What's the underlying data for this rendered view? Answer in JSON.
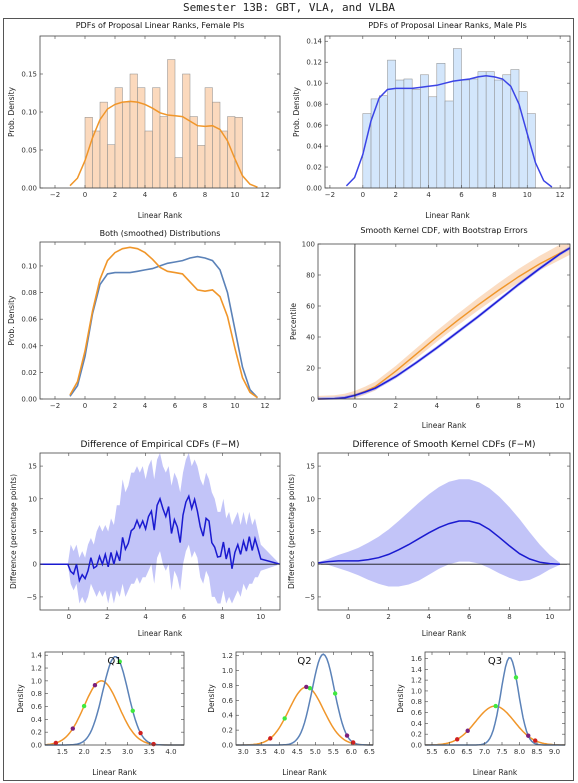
{
  "page_title": "Semester 13B: GBT, VLA, and VLBA",
  "colors": {
    "female": "#f0962a",
    "female_fill": "#fbd9bd",
    "male": "#3b44e6",
    "male_fill": "#d3e6fb",
    "kernel_m": "#5b82b8",
    "band": "#aeb0f5",
    "diff_line": "#1a1ad0",
    "point_green": "#3fe93f",
    "point_purple": "#7b1f7b",
    "point_red": "#d02020"
  },
  "chart_data": [
    {
      "id": "female_pdf",
      "type": "bar",
      "title": "PDFs of Proposal Linear Ranks, Female PIs",
      "xlabel": "Linear Rank",
      "ylabel": "Prob. Density",
      "xlim": [
        -3,
        13
      ],
      "ylim": [
        0,
        0.2
      ],
      "xticks": [
        -2,
        0,
        2,
        4,
        6,
        8,
        10,
        12
      ],
      "yticks": [
        0,
        0.05,
        0.1,
        0.15
      ],
      "ytick_labels": [
        "0.00",
        "0.05",
        "0.10",
        "0.15"
      ],
      "bin_edges": [
        0,
        0.5,
        1,
        1.5,
        2,
        2.5,
        3,
        3.5,
        4,
        4.5,
        5,
        5.5,
        6,
        6.5,
        7,
        7.5,
        8,
        8.5,
        9,
        9.5,
        10,
        10.5
      ],
      "values": [
        0.093,
        0.075,
        0.113,
        0.057,
        0.132,
        0.113,
        0.15,
        0.132,
        0.075,
        0.132,
        0.094,
        0.169,
        0.04,
        0.15,
        0.094,
        0.056,
        0.132,
        0.113,
        0.075,
        0.094,
        0.093
      ],
      "curve": {
        "x": [
          -1,
          -0.5,
          0,
          0.5,
          1,
          1.5,
          2,
          2.5,
          3,
          3.5,
          4,
          4.5,
          5,
          5.5,
          6,
          6.5,
          7,
          7.5,
          8,
          8.5,
          9,
          9.5,
          10,
          10.5,
          11,
          11.5
        ],
        "y": [
          0.003,
          0.013,
          0.036,
          0.066,
          0.09,
          0.104,
          0.11,
          0.113,
          0.114,
          0.113,
          0.11,
          0.105,
          0.099,
          0.096,
          0.095,
          0.094,
          0.088,
          0.082,
          0.081,
          0.082,
          0.077,
          0.062,
          0.038,
          0.016,
          0.005,
          0.001
        ]
      }
    },
    {
      "id": "male_pdf",
      "type": "bar",
      "title": "PDFs of Proposal Linear Ranks, Male PIs",
      "xlabel": "Linear Rank",
      "ylabel": "Prob. Density",
      "xlim": [
        -2.3,
        12.6
      ],
      "ylim": [
        0,
        0.145
      ],
      "xticks": [
        -2,
        0,
        2,
        4,
        6,
        8,
        10,
        12
      ],
      "yticks": [
        0,
        0.02,
        0.04,
        0.06,
        0.08,
        0.1,
        0.12,
        0.14
      ],
      "ytick_labels": [
        "0.00",
        "0.02",
        "0.04",
        "0.06",
        "0.08",
        "0.10",
        "0.12",
        "0.14"
      ],
      "bin_edges": [
        0,
        0.5,
        1,
        1.5,
        2,
        2.5,
        3,
        3.5,
        4,
        4.5,
        5,
        5.5,
        6,
        6.5,
        7,
        7.5,
        8,
        8.5,
        9,
        9.5,
        10,
        10.5
      ],
      "values": [
        0.071,
        0.085,
        0.088,
        0.122,
        0.103,
        0.104,
        0.094,
        0.108,
        0.087,
        0.119,
        0.083,
        0.133,
        0.103,
        0.104,
        0.111,
        0.111,
        0.103,
        0.108,
        0.113,
        0.092,
        0.071
      ],
      "curve": {
        "x": [
          -1,
          -0.5,
          0,
          0.5,
          1,
          1.5,
          2,
          2.5,
          3,
          3.5,
          4,
          4.5,
          5,
          5.5,
          6,
          6.5,
          7,
          7.5,
          8,
          8.5,
          9,
          9.5,
          10,
          10.5,
          11,
          11.5
        ],
        "y": [
          0.002,
          0.01,
          0.032,
          0.064,
          0.086,
          0.094,
          0.095,
          0.095,
          0.095,
          0.096,
          0.097,
          0.098,
          0.1,
          0.102,
          0.103,
          0.104,
          0.106,
          0.107,
          0.106,
          0.104,
          0.097,
          0.08,
          0.052,
          0.024,
          0.007,
          0.001
        ]
      }
    },
    {
      "id": "both",
      "type": "line",
      "title": "Both (smoothed) Distributions",
      "xlabel": "",
      "ylabel": "Prob. Density",
      "xlim": [
        -3,
        13
      ],
      "ylim": [
        0,
        0.118
      ],
      "xticks": [
        -2,
        0,
        2,
        4,
        6,
        8,
        10,
        12
      ],
      "yticks": [
        0,
        0.02,
        0.04,
        0.06,
        0.08,
        0.1
      ],
      "ytick_labels": [
        "0.00",
        "0.02",
        "0.04",
        "0.06",
        "0.08",
        "0.10"
      ],
      "series": [
        {
          "x": [
            -1,
            -0.5,
            0,
            0.5,
            1,
            1.5,
            2,
            2.5,
            3,
            3.5,
            4,
            4.5,
            5,
            5.5,
            6,
            6.5,
            7,
            7.5,
            8,
            8.5,
            9,
            9.5,
            10,
            10.5,
            11,
            11.5
          ],
          "y": [
            0.003,
            0.013,
            0.036,
            0.066,
            0.09,
            0.104,
            0.11,
            0.113,
            0.114,
            0.113,
            0.11,
            0.105,
            0.099,
            0.096,
            0.095,
            0.094,
            0.088,
            0.082,
            0.081,
            0.082,
            0.077,
            0.062,
            0.038,
            0.016,
            0.005,
            0.001
          ]
        },
        {
          "x": [
            -1,
            -0.5,
            0,
            0.5,
            1,
            1.5,
            2,
            2.5,
            3,
            3.5,
            4,
            4.5,
            5,
            5.5,
            6,
            6.5,
            7,
            7.5,
            8,
            8.5,
            9,
            9.5,
            10,
            10.5,
            11,
            11.5
          ],
          "y": [
            0.002,
            0.01,
            0.032,
            0.064,
            0.086,
            0.094,
            0.095,
            0.095,
            0.095,
            0.096,
            0.097,
            0.098,
            0.1,
            0.102,
            0.103,
            0.104,
            0.106,
            0.107,
            0.106,
            0.104,
            0.097,
            0.08,
            0.052,
            0.024,
            0.007,
            0.001
          ]
        }
      ]
    },
    {
      "id": "cdf",
      "type": "line",
      "title": "Smooth Kernel CDF, with Bootstrap Errors",
      "xlabel": "Linear Rank",
      "ylabel": "Percentile",
      "xlim": [
        -1.8,
        10.5
      ],
      "ylim": [
        0,
        100
      ],
      "xticks": [
        0,
        2,
        4,
        6,
        8,
        10
      ],
      "yticks": [
        0,
        20,
        40,
        60,
        80,
        100
      ],
      "series": [
        {
          "x": [
            -1.8,
            -1,
            -0.5,
            0,
            0.5,
            1,
            2,
            3,
            4,
            5,
            6,
            7,
            8,
            9,
            10,
            10.5
          ],
          "y": [
            0,
            0.2,
            0.9,
            2.5,
            5,
            8,
            18,
            29,
            40,
            50.5,
            60.5,
            70,
            79,
            87,
            94,
            97.5
          ]
        },
        {
          "x": [
            -1.8,
            -1,
            -0.5,
            0,
            0.5,
            1,
            2,
            3,
            4,
            5,
            6,
            7,
            8,
            9,
            10,
            10.5
          ],
          "y": [
            0,
            0.2,
            0.8,
            2.3,
            4.5,
            7,
            14.5,
            23.5,
            33,
            43,
            53,
            63.5,
            74,
            84,
            93.5,
            97.5
          ]
        }
      ]
    },
    {
      "id": "diff_emp",
      "type": "line",
      "title": "Difference of Empirical CDFs (F−M)",
      "xlabel": "Linear Rank",
      "ylabel": "Difference (percentage points)",
      "xlim": [
        -1.5,
        11
      ],
      "ylim": [
        -7,
        17
      ],
      "xticks": [
        0,
        2,
        4,
        6,
        8,
        10
      ],
      "yticks": [
        -5,
        0,
        5,
        10,
        15
      ],
      "series": [
        {
          "x": [
            -1.5,
            -0.05,
            0.1,
            0.25,
            0.4,
            0.55,
            0.7,
            0.85,
            1.0,
            1.15,
            1.3,
            1.45,
            1.6,
            1.75,
            1.9,
            2.05,
            2.2,
            2.35,
            2.5,
            2.65,
            2.8,
            2.95,
            3.1,
            3.25,
            3.4,
            3.55,
            3.7,
            3.85,
            4.0,
            4.15,
            4.3,
            4.45,
            4.6,
            4.75,
            4.9,
            5.05,
            5.2,
            5.35,
            5.5,
            5.65,
            5.8,
            5.95,
            6.1,
            6.25,
            6.4,
            6.55,
            6.7,
            6.85,
            7.0,
            7.15,
            7.3,
            7.45,
            7.6,
            7.75,
            7.9,
            8.05,
            8.2,
            8.35,
            8.5,
            8.65,
            8.8,
            8.95,
            9.1,
            9.25,
            9.4,
            9.55,
            9.7,
            9.85,
            10.0,
            11
          ],
          "y": [
            0,
            0,
            -1.1,
            -1.5,
            0,
            -2.5,
            -1.6,
            -2.2,
            -1,
            1,
            -0.6,
            -0.3,
            1.2,
            0,
            1.5,
            -0.4,
            1.8,
            0,
            1.8,
            0.5,
            4.1,
            2.3,
            3.2,
            5.1,
            5.5,
            6.7,
            5.6,
            6.6,
            5.4,
            7.3,
            8.1,
            5.2,
            9,
            10,
            8.5,
            7.3,
            8.8,
            4.7,
            6.8,
            5.7,
            3.3,
            7.5,
            9.5,
            10.4,
            8.5,
            9.9,
            8.1,
            5.7,
            4.3,
            7,
            6.6,
            3.3,
            2.6,
            1.1,
            1.2,
            3.4,
            0.8,
            2.5,
            -0.7,
            1.8,
            3,
            1.5,
            3.5,
            2,
            4.2,
            2.1,
            3.9,
            2.4,
            0.8,
            0
          ]
        }
      ],
      "band": {
        "upper": [
          0,
          0,
          3,
          2,
          3,
          1,
          2,
          1,
          3,
          4,
          3,
          5,
          6,
          5,
          6,
          5,
          7,
          6,
          9,
          9,
          13,
          11,
          12,
          14,
          14,
          15,
          14,
          15,
          13,
          15,
          16,
          13,
          16,
          17,
          15,
          14,
          15,
          12,
          14,
          13,
          11,
          14,
          16,
          17,
          15,
          16,
          15,
          13,
          12,
          14,
          13,
          11,
          10,
          8,
          8,
          10,
          7,
          8,
          6,
          7,
          8,
          6,
          8,
          6,
          8,
          6,
          7,
          5,
          3,
          0
        ],
        "lower": [
          0,
          0,
          -3,
          -4,
          -3,
          -6,
          -5,
          -6,
          -5,
          -3,
          -4,
          -5,
          -4,
          -5,
          -4,
          -6,
          -4,
          -6,
          -4,
          -5,
          -3,
          -5,
          -4,
          -3,
          -3,
          -2,
          -3,
          -2,
          -2,
          -1,
          0,
          -3,
          1,
          2,
          0,
          -1,
          0,
          -4,
          -1,
          -2,
          -4,
          0,
          2,
          3,
          1,
          2,
          1,
          -2,
          -3,
          -1,
          -2,
          -5,
          -5,
          -6,
          -6,
          -4,
          -6,
          -5,
          -6,
          -5,
          -4,
          -5,
          -3,
          -4,
          -3,
          -3,
          -2,
          -2,
          -1,
          0
        ]
      }
    },
    {
      "id": "diff_kern",
      "type": "line",
      "title": "Difference of Smooth Kernel CDFs (F−M)",
      "xlabel": "Linear Rank",
      "ylabel": "Difference (percentage points)",
      "xlim": [
        -1.5,
        11
      ],
      "ylim": [
        -7,
        17
      ],
      "xticks": [
        0,
        2,
        4,
        6,
        8,
        10
      ],
      "yticks": [
        -5,
        0,
        5,
        10,
        15
      ],
      "series": [
        {
          "x": [
            -1.5,
            -1,
            -0.5,
            0,
            0.5,
            1,
            1.5,
            2,
            2.5,
            3,
            3.5,
            4,
            4.5,
            5,
            5.5,
            6,
            6.5,
            7,
            7.5,
            8,
            8.5,
            9,
            9.5,
            10,
            10.5
          ],
          "y": [
            0.2,
            0.4,
            0.5,
            0.5,
            0.5,
            0.7,
            1,
            1.5,
            2.2,
            3,
            3.9,
            4.8,
            5.6,
            6.2,
            6.6,
            6.6,
            6.2,
            5.3,
            4.1,
            2.8,
            1.6,
            0.8,
            0.3,
            0.1,
            0
          ]
        }
      ],
      "band": {
        "upper": [
          0.3,
          0.8,
          1.4,
          1.9,
          2.5,
          3.3,
          4.2,
          5.3,
          6.6,
          8,
          9.4,
          10.7,
          11.8,
          12.6,
          13,
          13,
          12.5,
          11.6,
          10.3,
          8.7,
          6.9,
          4.9,
          3,
          1.4,
          0.2
        ],
        "lower": [
          0.1,
          -0.1,
          -0.6,
          -1.1,
          -1.7,
          -2.4,
          -3,
          -3.4,
          -3.4,
          -3.1,
          -2.5,
          -1.6,
          -0.7,
          0,
          0.4,
          0.4,
          0.1,
          -0.6,
          -1.4,
          -2.1,
          -2.6,
          -2.4,
          -1.7,
          -0.8,
          -0.1
        ]
      }
    },
    {
      "id": "Q1",
      "type": "line",
      "title": "Q1",
      "xlabel": "Linear Rank",
      "ylabel": "Density",
      "xlim": [
        1.1,
        4.3
      ],
      "ylim": [
        0,
        1.45
      ],
      "xticks": [
        1.5,
        2.0,
        2.5,
        3.0,
        3.5,
        4.0
      ],
      "xtick_labels": [
        "1.5",
        "2.0",
        "2.5",
        "3.0",
        "3.5",
        "4.0"
      ],
      "yticks": [
        0,
        0.2,
        0.4,
        0.6,
        0.8,
        1.0,
        1.2,
        1.4
      ],
      "ytick_labels": [
        "0.0",
        "0.2",
        "0.4",
        "0.6",
        "0.8",
        "1.0",
        "1.2",
        "1.4"
      ],
      "series": [
        {
          "mu": 2.4,
          "sd": 0.4,
          "h": 1.0
        },
        {
          "mu": 2.72,
          "sd": 0.29,
          "h": 1.38
        }
      ],
      "points": {
        "green": [
          2.0,
          2.82,
          3.12
        ],
        "purple": [
          1.74,
          2.25
        ],
        "red": [
          1.35,
          3.3,
          3.6
        ]
      }
    },
    {
      "id": "Q2",
      "type": "line",
      "title": "Q2",
      "xlabel": "Linear Rank",
      "ylabel": "Density",
      "xlim": [
        2.8,
        6.6
      ],
      "ylim": [
        0,
        1.25
      ],
      "xticks": [
        3.0,
        3.5,
        4.0,
        4.5,
        5.0,
        5.5,
        6.0,
        6.5
      ],
      "xtick_labels": [
        "3.0",
        "3.5",
        "4.0",
        "4.5",
        "5.0",
        "5.5",
        "6.0",
        "6.5"
      ],
      "yticks": [
        0,
        0.2,
        0.4,
        0.6,
        0.8,
        1.0,
        1.2
      ],
      "ytick_labels": [
        "0.0",
        "0.2",
        "0.4",
        "0.6",
        "0.8",
        "1.0",
        "1.2"
      ],
      "series": [
        {
          "mu": 4.75,
          "sd": 0.48,
          "h": 0.78
        },
        {
          "mu": 5.22,
          "sd": 0.31,
          "h": 1.22
        }
      ],
      "points": {
        "green": [
          4.15,
          4.85,
          5.55
        ],
        "purple": [
          4.75,
          5.88
        ],
        "red": [
          3.75,
          6.05
        ]
      }
    },
    {
      "id": "Q3",
      "type": "line",
      "title": "Q3",
      "xlabel": "Linear Rank",
      "ylabel": "Density",
      "xlim": [
        5.3,
        9.3
      ],
      "ylim": [
        0,
        1.72
      ],
      "xticks": [
        5.5,
        6.0,
        6.5,
        7.0,
        7.5,
        8.0,
        8.5,
        9.0
      ],
      "xtick_labels": [
        "5.5",
        "6.0",
        "6.5",
        "7.0",
        "7.5",
        "8.0",
        "8.5",
        "9.0"
      ],
      "yticks": [
        0,
        0.2,
        0.4,
        0.6,
        0.8,
        1.0,
        1.2,
        1.4,
        1.6
      ],
      "ytick_labels": [
        "0.0",
        "0.2",
        "0.4",
        "0.6",
        "0.8",
        "1.0",
        "1.2",
        "1.4",
        "1.6"
      ],
      "series": [
        {
          "mu": 7.3,
          "sd": 0.55,
          "h": 0.72
        },
        {
          "mu": 7.72,
          "sd": 0.25,
          "h": 1.62
        }
      ],
      "points": {
        "green": [
          7.32,
          7.9
        ],
        "purple": [
          6.52,
          8.25
        ],
        "red": [
          6.22,
          8.45
        ]
      }
    }
  ]
}
